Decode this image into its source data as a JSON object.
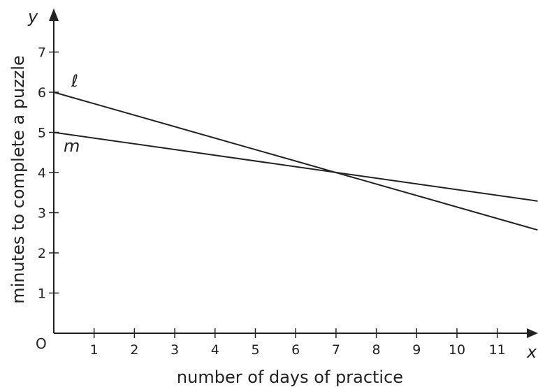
{
  "chart_data": {
    "type": "line",
    "title": "",
    "xlabel": "number of days of practice",
    "ylabel": "minutes to complete a puzzle",
    "x_var": "x",
    "y_var": "y",
    "origin_label": "O",
    "xlim": [
      0,
      12
    ],
    "ylim": [
      0,
      8
    ],
    "x_ticks": [
      1,
      2,
      3,
      4,
      5,
      6,
      7,
      8,
      9,
      10,
      11
    ],
    "y_ticks": [
      1,
      2,
      3,
      4,
      5,
      6,
      7
    ],
    "grid": false,
    "series": [
      {
        "name": "ℓ",
        "x": [
          0,
          12
        ],
        "y": [
          6,
          2.57
        ]
      },
      {
        "name": "m",
        "x": [
          0,
          12
        ],
        "y": [
          5,
          3.29
        ]
      }
    ]
  }
}
